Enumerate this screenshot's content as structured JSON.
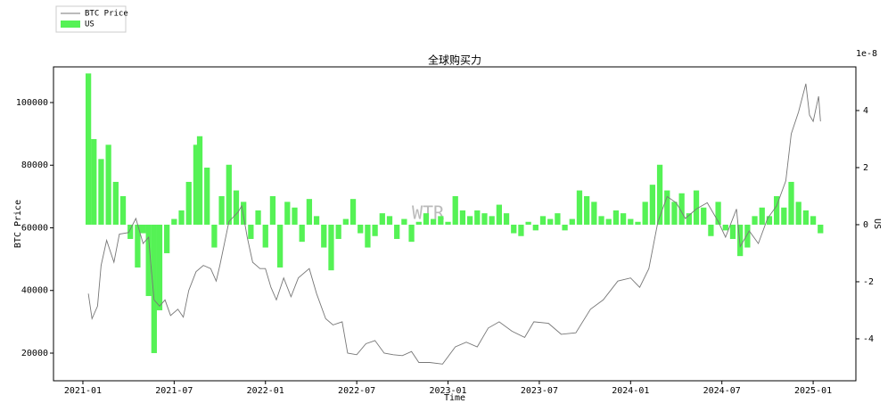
{
  "chart_data": {
    "type": "line",
    "title": "全球购买力",
    "xlabel": "Time",
    "ylabel": "BTC Price",
    "y2label": "US",
    "y2_offset_label": "1e-8",
    "watermark": "WTR",
    "xlim": [
      2020.839,
      2025.234
    ],
    "ylim": [
      11174,
      111388
    ],
    "y2lim": [
      -5.47,
      5.53
    ],
    "xticks": [
      {
        "value": 2021.0,
        "label": "2021-01"
      },
      {
        "value": 2021.5,
        "label": "2021-07"
      },
      {
        "value": 2022.0,
        "label": "2022-01"
      },
      {
        "value": 2022.5,
        "label": "2022-07"
      },
      {
        "value": 2023.0,
        "label": "2023-01"
      },
      {
        "value": 2023.5,
        "label": "2023-07"
      },
      {
        "value": 2024.0,
        "label": "2024-01"
      },
      {
        "value": 2024.5,
        "label": "2024-07"
      },
      {
        "value": 2025.0,
        "label": "2025-01"
      }
    ],
    "yticks": [
      20000,
      40000,
      60000,
      80000,
      100000
    ],
    "y2ticks": [
      -4,
      -2,
      0,
      2,
      4
    ],
    "legend": "upper left",
    "series": [
      {
        "name": "BTC Price",
        "type": "line",
        "color": "#777777",
        "x": [
          2021.03,
          2021.05,
          2021.08,
          2021.1,
          2021.13,
          2021.17,
          2021.2,
          2021.25,
          2021.29,
          2021.33,
          2021.36,
          2021.37,
          2021.39,
          2021.42,
          2021.45,
          2021.48,
          2021.52,
          2021.55,
          2021.58,
          2021.62,
          2021.66,
          2021.7,
          2021.73,
          2021.75,
          2021.8,
          2021.85,
          2021.87,
          2021.9,
          2021.93,
          2021.97,
          2022.0,
          2022.03,
          2022.06,
          2022.1,
          2022.14,
          2022.18,
          2022.24,
          2022.28,
          2022.33,
          2022.37,
          2022.42,
          2022.45,
          2022.5,
          2022.55,
          2022.6,
          2022.65,
          2022.7,
          2022.75,
          2022.8,
          2022.84,
          2022.9,
          2022.97,
          2023.04,
          2023.1,
          2023.16,
          2023.22,
          2023.28,
          2023.35,
          2023.42,
          2023.47,
          2023.55,
          2023.62,
          2023.7,
          2023.78,
          2023.85,
          2023.93,
          2024.0,
          2024.05,
          2024.1,
          2024.15,
          2024.2,
          2024.25,
          2024.3,
          2024.36,
          2024.42,
          2024.48,
          2024.52,
          2024.58,
          2024.6,
          2024.65,
          2024.7,
          2024.75,
          2024.8,
          2024.85,
          2024.88,
          2024.92,
          2024.96,
          2024.98,
          2025.0,
          2025.03,
          2025.04
        ],
        "values": [
          39000,
          31000,
          35000,
          48000,
          56000,
          49000,
          58000,
          58500,
          63000,
          55000,
          57000,
          50000,
          37000,
          35000,
          37000,
          32000,
          34000,
          31500,
          40000,
          46000,
          48000,
          47000,
          43000,
          48000,
          62000,
          65000,
          67000,
          57000,
          49000,
          47000,
          47000,
          41000,
          37000,
          44000,
          38000,
          44000,
          47000,
          39000,
          31000,
          29000,
          30000,
          20000,
          19500,
          23000,
          24000,
          20000,
          19500,
          19200,
          20500,
          17000,
          17000,
          16500,
          22000,
          23500,
          22000,
          28000,
          30000,
          27000,
          25000,
          30000,
          29500,
          26000,
          26500,
          34000,
          37000,
          43000,
          44000,
          41000,
          47000,
          62000,
          70000,
          68000,
          63000,
          66000,
          68000,
          62000,
          57000,
          66000,
          54000,
          59000,
          55000,
          63000,
          67000,
          75000,
          90000,
          97000,
          106000,
          96000,
          94000,
          102000,
          94000
        ]
      },
      {
        "name": "US",
        "type": "bar",
        "axis": "y2",
        "color": "#55f255",
        "x": [
          2021.03,
          2021.06,
          2021.1,
          2021.14,
          2021.18,
          2021.22,
          2021.26,
          2021.3,
          2021.33,
          2021.36,
          2021.39,
          2021.42,
          2021.46,
          2021.5,
          2021.54,
          2021.58,
          2021.62,
          2021.64,
          2021.68,
          2021.72,
          2021.76,
          2021.8,
          2021.84,
          2021.88,
          2021.92,
          2021.96,
          2022.0,
          2022.04,
          2022.08,
          2022.12,
          2022.16,
          2022.2,
          2022.24,
          2022.28,
          2022.32,
          2022.36,
          2022.4,
          2022.44,
          2022.48,
          2022.52,
          2022.56,
          2022.6,
          2022.64,
          2022.68,
          2022.72,
          2022.76,
          2022.8,
          2022.84,
          2022.88,
          2022.92,
          2022.96,
          2023.0,
          2023.04,
          2023.08,
          2023.12,
          2023.16,
          2023.2,
          2023.24,
          2023.28,
          2023.32,
          2023.36,
          2023.4,
          2023.44,
          2023.48,
          2023.52,
          2023.56,
          2023.6,
          2023.64,
          2023.68,
          2023.72,
          2023.76,
          2023.8,
          2023.84,
          2023.88,
          2023.92,
          2023.96,
          2024.0,
          2024.04,
          2024.08,
          2024.12,
          2024.16,
          2024.2,
          2024.24,
          2024.28,
          2024.32,
          2024.36,
          2024.4,
          2024.44,
          2024.48,
          2024.52,
          2024.56,
          2024.6,
          2024.64,
          2024.68,
          2024.72,
          2024.76,
          2024.8,
          2024.84,
          2024.88,
          2024.92,
          2024.96,
          2025.0,
          2025.04
        ],
        "values": [
          5.3,
          3.0,
          2.3,
          2.8,
          1.5,
          1.0,
          -0.5,
          -1.5,
          -0.3,
          -2.5,
          -4.5,
          -3.0,
          -1.0,
          0.2,
          0.5,
          1.5,
          2.8,
          3.1,
          2.0,
          -0.8,
          1.0,
          2.1,
          1.2,
          0.8,
          -0.5,
          0.5,
          -0.8,
          1.0,
          -1.5,
          0.8,
          0.6,
          -0.6,
          0.9,
          0.3,
          -0.8,
          -1.6,
          -0.5,
          0.2,
          0.9,
          -0.3,
          -0.8,
          -0.4,
          0.4,
          0.3,
          -0.5,
          0.2,
          -0.6,
          0.1,
          0.4,
          0.2,
          0.3,
          0.1,
          1.0,
          0.5,
          0.3,
          0.5,
          0.4,
          0.3,
          0.7,
          0.4,
          -0.3,
          -0.4,
          0.1,
          -0.2,
          0.3,
          0.2,
          0.4,
          -0.2,
          0.2,
          1.2,
          1.0,
          0.8,
          0.3,
          0.2,
          0.5,
          0.4,
          0.2,
          0.1,
          0.8,
          1.4,
          2.1,
          1.2,
          0.8,
          1.1,
          0.4,
          1.2,
          0.6,
          -0.4,
          0.8,
          -0.2,
          -0.5,
          -1.1,
          -0.8,
          0.3,
          0.6,
          0.3,
          1.0,
          0.6,
          1.5,
          0.8,
          0.5,
          0.3,
          -0.3
        ]
      }
    ]
  }
}
